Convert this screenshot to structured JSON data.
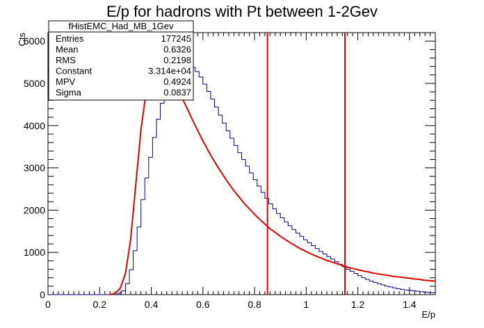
{
  "chart_data": {
    "type": "line",
    "title": "E/p for hadrons with Pt between 1-2Gev",
    "xlabel": "E/p",
    "ylabel": "Cts",
    "xlim": [
      0,
      1.5
    ],
    "ylim": [
      0,
      6200
    ],
    "x_ticks": [
      "0",
      "0.2",
      "0.4",
      "0.6",
      "0.8",
      "1",
      "1.2",
      "1.4"
    ],
    "y_ticks": [
      "0",
      "1000",
      "2000",
      "3000",
      "4000",
      "5000",
      "6000"
    ],
    "x_tick_values": [
      0,
      0.2,
      0.4,
      0.6,
      0.8,
      1.0,
      1.2,
      1.4
    ],
    "y_tick_values": [
      0,
      1000,
      2000,
      3000,
      4000,
      5000,
      6000
    ],
    "histogram": {
      "name": "fHistEMC_Had_MB_1Gev",
      "color": "#000080",
      "bin_width": 0.015,
      "start": 0,
      "values": [
        0,
        0,
        0,
        0,
        0,
        0,
        0,
        0,
        0,
        0,
        0,
        0,
        0,
        0,
        0,
        0,
        0,
        5,
        30,
        90,
        260,
        590,
        1040,
        1600,
        2250,
        2760,
        3250,
        3720,
        4150,
        4530,
        4830,
        5080,
        5250,
        5380,
        5440,
        5450,
        5430,
        5380,
        5280,
        5150,
        4980,
        4810,
        4630,
        4440,
        4250,
        4060,
        3880,
        3700,
        3530,
        3360,
        3200,
        3040,
        2880,
        2720,
        2570,
        2420,
        2280,
        2150,
        2030,
        1920,
        1820,
        1720,
        1630,
        1540,
        1460,
        1380,
        1300,
        1230,
        1160,
        1090,
        1020,
        960,
        900,
        840,
        780,
        720,
        660,
        600,
        550,
        500,
        450,
        400,
        360,
        320,
        290,
        260,
        230,
        200,
        180,
        160,
        140,
        125,
        110,
        100,
        90,
        80,
        70,
        60,
        50,
        45
      ]
    },
    "fit": {
      "color": "#e00000",
      "x": [
        0.24,
        0.26,
        0.28,
        0.3,
        0.32,
        0.34,
        0.36,
        0.38,
        0.4,
        0.42,
        0.44,
        0.46,
        0.48,
        0.5,
        0.52,
        0.54,
        0.56,
        0.58,
        0.6,
        0.62,
        0.64,
        0.66,
        0.68,
        0.7,
        0.72,
        0.74,
        0.76,
        0.78,
        0.8,
        0.82,
        0.84,
        0.86,
        0.88,
        0.9,
        0.92,
        0.94,
        0.96,
        0.98,
        1.0,
        1.02,
        1.04,
        1.06,
        1.08,
        1.1,
        1.12,
        1.14,
        1.16,
        1.18,
        1.2,
        1.22,
        1.24,
        1.26,
        1.28,
        1.3,
        1.32,
        1.34,
        1.36,
        1.38,
        1.4,
        1.42,
        1.44,
        1.46,
        1.48,
        1.5
      ],
      "y": [
        0,
        30,
        150,
        500,
        1300,
        2600,
        3900,
        4800,
        5350,
        5500,
        5460,
        5330,
        5180,
        4920,
        4650,
        4390,
        4130,
        3880,
        3640,
        3410,
        3200,
        3000,
        2810,
        2630,
        2460,
        2310,
        2160,
        2030,
        1900,
        1780,
        1670,
        1560,
        1470,
        1380,
        1300,
        1220,
        1150,
        1080,
        1020,
        960,
        910,
        860,
        810,
        770,
        730,
        690,
        650,
        620,
        590,
        560,
        540,
        510,
        490,
        470,
        450,
        430,
        420,
        400,
        390,
        370,
        360,
        340,
        330,
        320
      ]
    },
    "vlines": {
      "color": "#e00000",
      "x": [
        0.85,
        1.15
      ],
      "y_top": 6200
    },
    "stats_box": {
      "name": "fHistEMC_Had_MB_1Gev",
      "rows": [
        {
          "label": "Entries",
          "value": "177245"
        },
        {
          "label": "Mean",
          "value": "0.6326"
        },
        {
          "label": "RMS",
          "value": "0.2198"
        },
        {
          "label": "Constant",
          "value": "3.314e+04"
        },
        {
          "label": "MPV",
          "value": "0.4924"
        },
        {
          "label": "Sigma",
          "value": "0.0837"
        }
      ]
    }
  }
}
